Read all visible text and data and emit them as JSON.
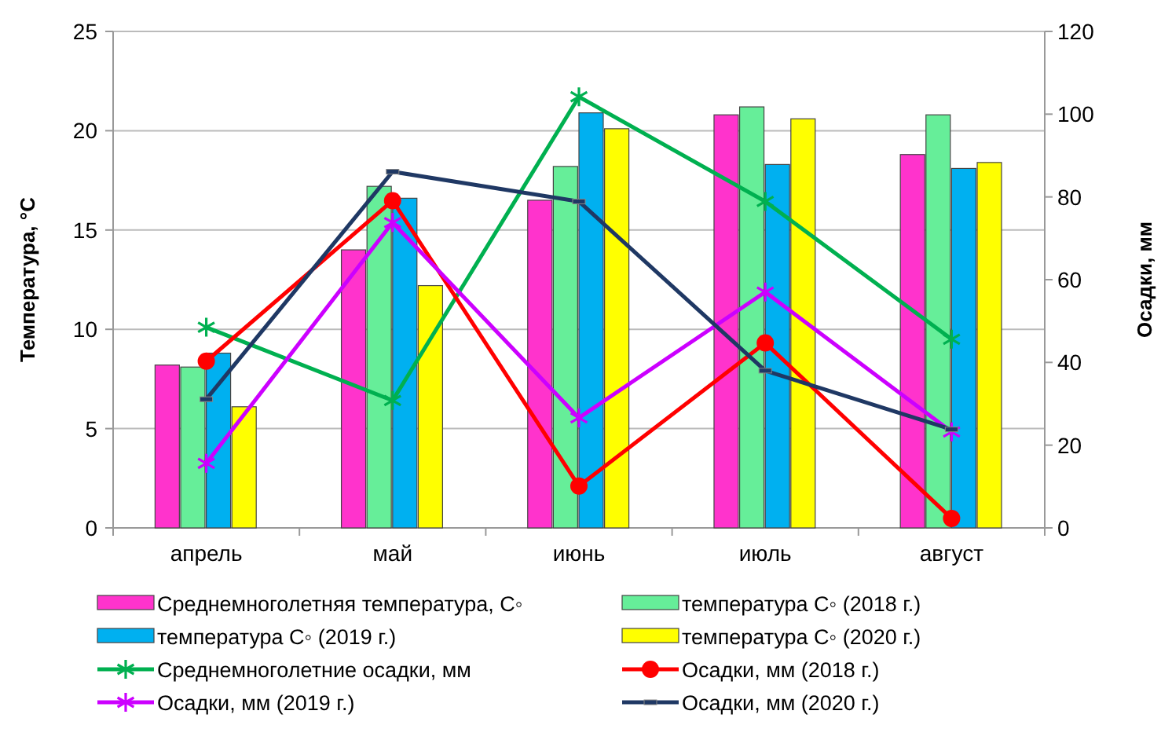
{
  "chart_data": {
    "type": "bar",
    "ylabel": "Температура, °С",
    "y2label": "Осадки, мм",
    "categories": [
      "апрель",
      "май",
      "июнь",
      "июль",
      "август"
    ],
    "ylim": [
      0,
      25
    ],
    "yticks": [
      0,
      5,
      10,
      15,
      20,
      25
    ],
    "y2lim": [
      0,
      120
    ],
    "y2ticks": [
      0,
      20,
      40,
      60,
      80,
      100,
      120
    ],
    "grid": "y",
    "legend": "bottom",
    "series": [
      {
        "name": "Среднемноголетняя температура, С◦",
        "color": "#ff33cc",
        "values": [
          8.2,
          14.0,
          16.5,
          20.8,
          18.8
        ]
      },
      {
        "name": "температура С◦ (2018 г.)",
        "color": "#66ee99",
        "values": [
          8.1,
          17.2,
          18.2,
          21.2,
          20.8
        ]
      },
      {
        "name": "температура С◦ (2019 г.)",
        "color": "#00b0f0",
        "values": [
          8.8,
          16.6,
          20.9,
          18.3,
          18.1
        ]
      },
      {
        "name": "температура С◦ (2020 г.)",
        "color": "#ffff00",
        "values": [
          6.1,
          12.2,
          20.1,
          20.6,
          18.4
        ]
      },
      {
        "name": "Среднемноголетние осадки, мм",
        "type": "line",
        "axis": "y2",
        "color": "#00b050",
        "marker": "cross",
        "values": [
          48.5,
          30.8,
          104.2,
          78.9,
          45.6
        ]
      },
      {
        "name": "Осадки, мм (2018 г.)",
        "type": "line",
        "axis": "y2",
        "color": "#ff0000",
        "marker": "circle",
        "values": [
          40.3,
          79.1,
          10.1,
          44.7,
          2.3
        ]
      },
      {
        "name": "Осадки, мм (2019 г.)",
        "type": "line",
        "axis": "y2",
        "color": "#cc00ff",
        "marker": "cross",
        "values": [
          15.6,
          73.8,
          26.6,
          57.0,
          23.2
        ]
      },
      {
        "name": "Осадки, мм (2020 г.)",
        "type": "line",
        "axis": "y2",
        "color": "#1f3864",
        "marker": "square",
        "values": [
          31.1,
          86.1,
          78.9,
          38.0,
          23.8
        ]
      }
    ]
  }
}
